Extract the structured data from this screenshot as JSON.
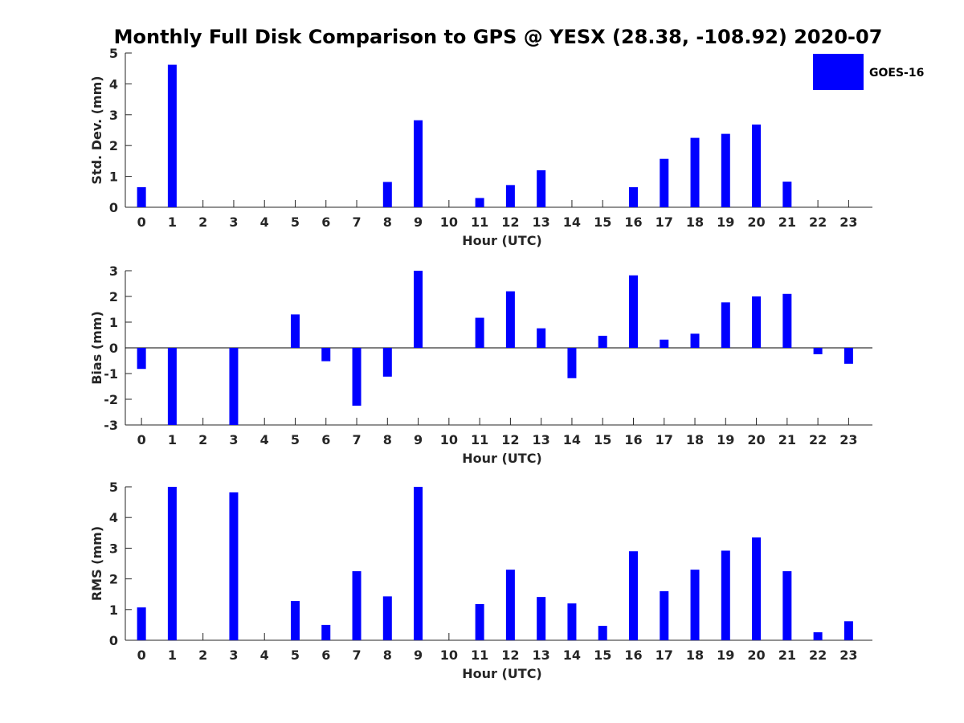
{
  "chart_data": [
    {
      "type": "bar",
      "title": "Monthly Full Disk Comparison to GPS @ YESX (28.38, -108.92) 2020-07",
      "xlabel": "Hour (UTC)",
      "ylabel": "Std. Dev. (mm)",
      "ylim": [
        0,
        5
      ],
      "yticks": [
        0,
        1,
        2,
        3,
        4,
        5
      ],
      "categories": [
        "0",
        "1",
        "2",
        "3",
        "4",
        "5",
        "6",
        "7",
        "8",
        "9",
        "10",
        "11",
        "12",
        "13",
        "14",
        "15",
        "16",
        "17",
        "18",
        "19",
        "20",
        "21",
        "22",
        "23"
      ],
      "series": [
        {
          "name": "GOES-16",
          "color": "#0000ff",
          "values": [
            0.65,
            4.62,
            0,
            0,
            0,
            0,
            0,
            0,
            0.82,
            2.82,
            0,
            0.3,
            0.72,
            1.2,
            0,
            0,
            0.65,
            1.57,
            2.25,
            2.38,
            2.68,
            0.83,
            0,
            0
          ]
        }
      ],
      "legend": {
        "entries": [
          "GOES-16"
        ],
        "placement": "top-right"
      }
    },
    {
      "type": "bar",
      "xlabel": "Hour (UTC)",
      "ylabel": "Bias (mm)",
      "ylim": [
        -3,
        3
      ],
      "yticks": [
        -3,
        -2,
        -1,
        0,
        1,
        2,
        3
      ],
      "zero_line": true,
      "categories": [
        "0",
        "1",
        "2",
        "3",
        "4",
        "5",
        "6",
        "7",
        "8",
        "9",
        "10",
        "11",
        "12",
        "13",
        "14",
        "15",
        "16",
        "17",
        "18",
        "19",
        "20",
        "21",
        "22",
        "23"
      ],
      "series": [
        {
          "name": "GOES-16",
          "color": "#0000ff",
          "values": [
            -0.82,
            -3.0,
            0,
            -3.0,
            0,
            1.3,
            -0.52,
            -2.25,
            -1.12,
            3.0,
            0,
            1.17,
            2.2,
            0.76,
            -1.18,
            0.47,
            2.82,
            0.32,
            0.55,
            1.77,
            2.0,
            2.1,
            -0.25,
            -0.62
          ]
        }
      ]
    },
    {
      "type": "bar",
      "xlabel": "Hour (UTC)",
      "ylabel": "RMS (mm)",
      "ylim": [
        0,
        5
      ],
      "yticks": [
        0,
        1,
        2,
        3,
        4,
        5
      ],
      "categories": [
        "0",
        "1",
        "2",
        "3",
        "4",
        "5",
        "6",
        "7",
        "8",
        "9",
        "10",
        "11",
        "12",
        "13",
        "14",
        "15",
        "16",
        "17",
        "18",
        "19",
        "20",
        "21",
        "22",
        "23"
      ],
      "series": [
        {
          "name": "GOES-16",
          "color": "#0000ff",
          "values": [
            1.07,
            5.0,
            0,
            4.82,
            0,
            1.28,
            0.5,
            2.25,
            1.43,
            5.0,
            0,
            1.18,
            2.3,
            1.41,
            1.2,
            0.47,
            2.9,
            1.6,
            2.3,
            2.92,
            3.35,
            2.25,
            0.26,
            0.62
          ]
        }
      ]
    }
  ]
}
